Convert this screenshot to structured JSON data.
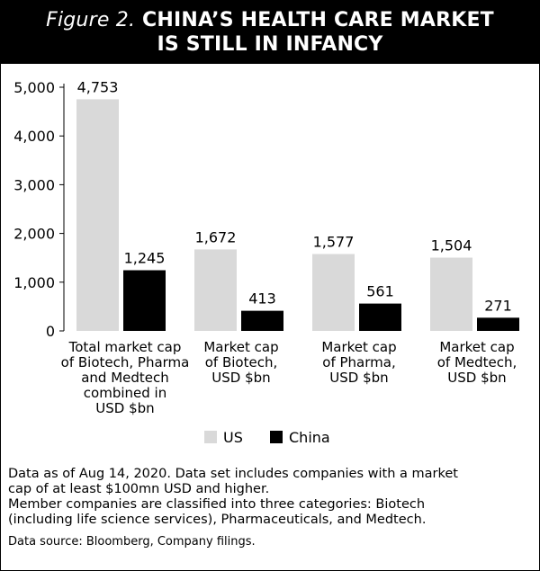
{
  "header": {
    "title_prefix": "Figure 2.",
    "title_line1": "CHINA’S HEALTH CARE MARKET",
    "title_line2": "IS STILL IN INFANCY"
  },
  "chart_data": {
    "type": "bar",
    "categories": [
      [
        "Total market cap",
        "of Biotech, Pharma",
        "and Medtech",
        "combined in",
        "USD $bn"
      ],
      [
        "Market cap",
        "of Biotech,",
        "USD $bn"
      ],
      [
        "Market cap",
        "of Pharma,",
        "USD $bn"
      ],
      [
        "Market cap",
        "of Medtech,",
        "USD $bn"
      ]
    ],
    "series": [
      {
        "name": "US",
        "values": [
          4753,
          1672,
          1577,
          1504
        ],
        "labels": [
          "4,753",
          "1,672",
          "1,577",
          "1,504"
        ],
        "color": "#d9d9d9"
      },
      {
        "name": "China",
        "values": [
          1245,
          413,
          561,
          271
        ],
        "labels": [
          "1,245",
          "413",
          "561",
          "271"
        ],
        "color": "#000000"
      }
    ],
    "yticks": [
      "0",
      "1,000",
      "2,000",
      "3,000",
      "4,000",
      "5,000"
    ],
    "ylim": [
      0,
      5000
    ],
    "legend": "bottom-center",
    "grid": false
  },
  "footer": {
    "note_line1": "Data as of Aug 14, 2020. Data set includes companies with a market",
    "note_line2": "cap of at least $100mn USD and higher.",
    "note_line3": "Member companies are classified into three categories: Biotech",
    "note_line4": "(including life science services), Pharmaceuticals, and Medtech.",
    "source": "Data source: Bloomberg, Company filings."
  }
}
